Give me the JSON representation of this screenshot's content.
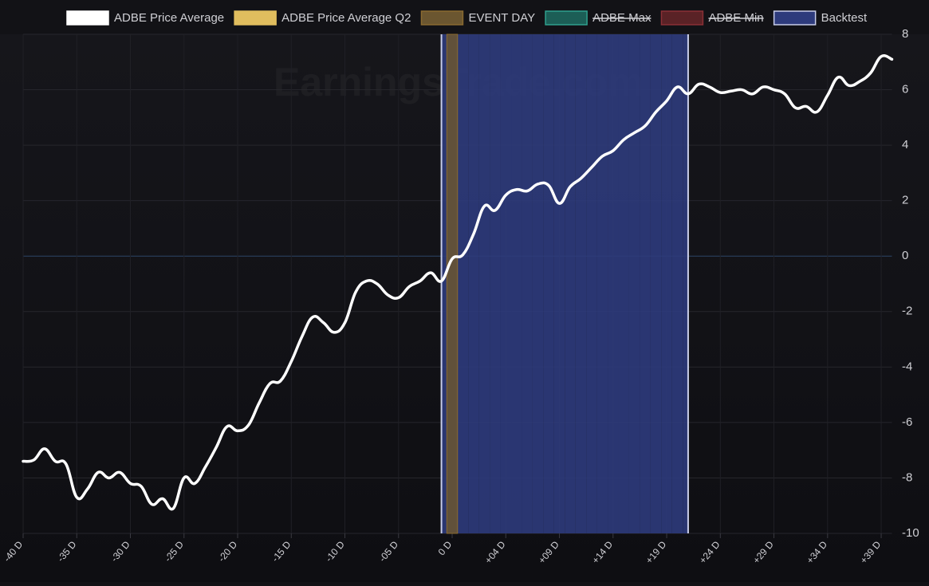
{
  "chart_data": {
    "type": "line",
    "watermark": "EarningsTrade.com",
    "categories": [
      "-40 D",
      null,
      null,
      null,
      null,
      "-35 D",
      null,
      null,
      null,
      null,
      "-30 D",
      null,
      null,
      null,
      null,
      "-25 D",
      null,
      null,
      null,
      null,
      "-20 D",
      null,
      null,
      null,
      null,
      "-15 D",
      null,
      null,
      null,
      null,
      "-10 D",
      null,
      null,
      null,
      null,
      "-05 D",
      null,
      null,
      null,
      null,
      "0 D",
      null,
      null,
      null,
      null,
      "+04 D",
      null,
      null,
      null,
      null,
      "+09 D",
      null,
      null,
      null,
      null,
      "+14 D",
      null,
      null,
      null,
      null,
      "+19 D",
      null,
      null,
      null,
      null,
      "+24 D",
      null,
      null,
      null,
      null,
      "+29 D",
      null,
      null,
      null,
      null,
      "+34 D",
      null,
      null,
      null,
      null,
      "+39 D",
      null
    ],
    "series": [
      {
        "name": "ADBE Price Average",
        "type": "line",
        "color": "#ffffff",
        "values": [
          -7.4,
          -7.35,
          -6.95,
          -7.4,
          -7.5,
          -8.7,
          -8.4,
          -7.8,
          -8.0,
          -7.8,
          -8.2,
          -8.3,
          -8.95,
          -8.75,
          -9.1,
          -8.0,
          -8.2,
          -7.6,
          -6.9,
          -6.15,
          -6.3,
          -6.1,
          -5.3,
          -4.6,
          -4.5,
          -3.8,
          -2.9,
          -2.2,
          -2.4,
          -2.75,
          -2.4,
          -1.3,
          -0.9,
          -1.0,
          -1.4,
          -1.5,
          -1.1,
          -0.9,
          -0.6,
          -0.9,
          -0.1,
          0.05,
          0.8,
          1.8,
          1.65,
          2.2,
          2.4,
          2.35,
          2.6,
          2.55,
          1.9,
          2.5,
          2.8,
          3.2,
          3.6,
          3.8,
          4.2,
          4.45,
          4.7,
          5.2,
          5.6,
          6.1,
          5.85,
          6.2,
          6.1,
          5.9,
          5.95,
          6.0,
          5.85,
          6.1,
          6.0,
          5.85,
          5.35,
          5.4,
          5.2,
          5.8,
          6.45,
          6.15,
          6.3,
          6.6,
          7.2,
          7.1
        ]
      },
      {
        "name": "ADBE Price Average Q2",
        "type": "line",
        "color": "#e0bd5e"
      },
      {
        "name": "EVENT DAY",
        "type": "bar",
        "color": "#6b5630",
        "values": [
          null,
          null,
          null,
          null,
          null,
          null,
          null,
          null,
          null,
          null,
          null,
          null,
          null,
          null,
          null,
          null,
          null,
          null,
          null,
          null,
          null,
          null,
          null,
          null,
          null,
          null,
          null,
          null,
          null,
          null,
          null,
          null,
          null,
          null,
          null,
          null,
          null,
          null,
          null,
          null,
          8,
          null,
          null,
          null,
          null,
          null,
          null,
          null,
          null,
          null,
          null,
          null,
          null,
          null,
          null,
          null,
          null,
          null,
          null,
          null,
          null,
          null,
          null,
          null,
          null,
          null,
          null,
          null,
          null,
          null,
          null,
          null,
          null,
          null,
          null,
          null,
          null,
          null,
          null,
          null,
          null,
          null
        ]
      },
      {
        "name": "ADBE Max",
        "type": "line",
        "color": "#1c5e56",
        "hidden": true
      },
      {
        "name": "ADBE Min",
        "type": "line",
        "color": "#5a2226",
        "hidden": true
      },
      {
        "name": "Backtest",
        "type": "area",
        "color": "#2e3b7c",
        "values": [
          null,
          null,
          null,
          null,
          null,
          null,
          null,
          null,
          null,
          null,
          null,
          null,
          null,
          null,
          null,
          null,
          null,
          null,
          null,
          null,
          null,
          null,
          null,
          null,
          null,
          null,
          null,
          null,
          null,
          null,
          null,
          null,
          null,
          null,
          null,
          null,
          null,
          null,
          null,
          8,
          8,
          8,
          8,
          8,
          8,
          8,
          8,
          8,
          8,
          8,
          8,
          8,
          8,
          8,
          8,
          8,
          8,
          8,
          8,
          8,
          8,
          8,
          8,
          null,
          null,
          null,
          null,
          null,
          null,
          null,
          null,
          null,
          null,
          null,
          null,
          null,
          null,
          null,
          null,
          null,
          null,
          null
        ]
      }
    ],
    "ylim": [
      -10,
      8
    ],
    "yticks": [
      -10,
      -8,
      -6,
      -4,
      -2,
      0,
      2,
      4,
      6,
      8
    ],
    "grid": true
  }
}
